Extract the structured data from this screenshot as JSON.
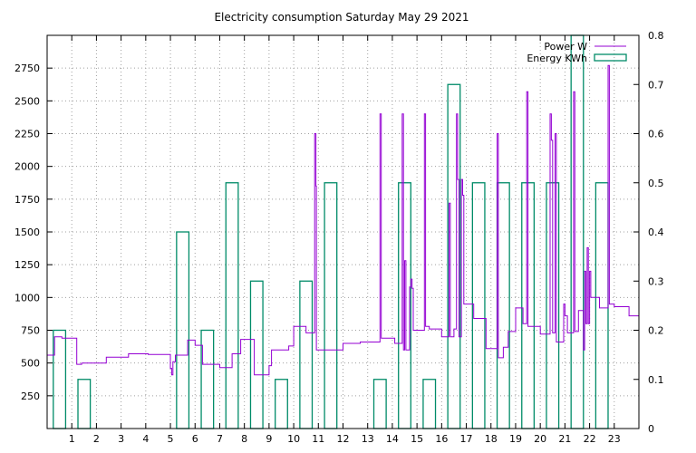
{
  "chart_data": {
    "type": "bar+line",
    "title": "Electricity consumption Saturday May 29 2021",
    "xlabel": "",
    "ylabel": "",
    "y2label": "",
    "xlim": [
      0,
      24
    ],
    "ylim": [
      0,
      3000
    ],
    "y2lim": [
      0,
      0.8
    ],
    "x_ticks": [
      1,
      2,
      3,
      4,
      5,
      6,
      7,
      8,
      9,
      10,
      11,
      12,
      13,
      14,
      15,
      16,
      17,
      18,
      19,
      20,
      21,
      22,
      23
    ],
    "y_ticks": [
      250,
      500,
      750,
      1000,
      1250,
      1500,
      1750,
      2000,
      2250,
      2500,
      2750
    ],
    "y2_ticks": [
      0,
      0.1,
      0.2,
      0.3,
      0.4,
      0.5,
      0.6,
      0.7,
      0.8
    ],
    "grid": true,
    "legend_position": "top-right",
    "series": [
      {
        "name": "Power W",
        "axis": "left",
        "style": "steps",
        "color": "#9400d3",
        "points": [
          [
            0,
            560
          ],
          [
            0.3,
            700
          ],
          [
            0.6,
            690
          ],
          [
            1.2,
            490
          ],
          [
            1.4,
            500
          ],
          [
            2.4,
            545
          ],
          [
            3.3,
            570
          ],
          [
            4.1,
            565
          ],
          [
            5.0,
            460
          ],
          [
            5.05,
            410
          ],
          [
            5.1,
            510
          ],
          [
            5.2,
            560
          ],
          [
            5.7,
            675
          ],
          [
            6.0,
            635
          ],
          [
            6.3,
            490
          ],
          [
            7.0,
            465
          ],
          [
            7.5,
            570
          ],
          [
            7.85,
            680
          ],
          [
            8.4,
            410
          ],
          [
            9.0,
            480
          ],
          [
            9.1,
            600
          ],
          [
            9.8,
            630
          ],
          [
            10.0,
            780
          ],
          [
            10.5,
            730
          ],
          [
            10.85,
            2250
          ],
          [
            10.9,
            1850
          ],
          [
            10.92,
            600
          ],
          [
            12.0,
            650
          ],
          [
            12.7,
            660
          ],
          [
            13.5,
            2400
          ],
          [
            13.55,
            690
          ],
          [
            14.1,
            650
          ],
          [
            14.4,
            2400
          ],
          [
            14.45,
            600
          ],
          [
            14.5,
            1280
          ],
          [
            14.55,
            600
          ],
          [
            14.7,
            1080
          ],
          [
            14.75,
            1140
          ],
          [
            14.8,
            1070
          ],
          [
            14.85,
            750
          ],
          [
            15.3,
            2400
          ],
          [
            15.35,
            780
          ],
          [
            15.5,
            760
          ],
          [
            16.0,
            700
          ],
          [
            16.3,
            1720
          ],
          [
            16.35,
            700
          ],
          [
            16.5,
            760
          ],
          [
            16.6,
            2400
          ],
          [
            16.65,
            1900
          ],
          [
            16.7,
            700
          ],
          [
            16.8,
            1900
          ],
          [
            16.85,
            1780
          ],
          [
            16.9,
            950
          ],
          [
            17.3,
            840
          ],
          [
            17.8,
            610
          ],
          [
            18.25,
            2250
          ],
          [
            18.3,
            540
          ],
          [
            18.5,
            620
          ],
          [
            18.7,
            740
          ],
          [
            19.0,
            920
          ],
          [
            19.3,
            800
          ],
          [
            19.45,
            2570
          ],
          [
            19.5,
            780
          ],
          [
            20.0,
            720
          ],
          [
            20.4,
            2400
          ],
          [
            20.45,
            2200
          ],
          [
            20.5,
            730
          ],
          [
            20.6,
            2250
          ],
          [
            20.65,
            660
          ],
          [
            20.95,
            950
          ],
          [
            21.0,
            860
          ],
          [
            21.1,
            730
          ],
          [
            21.35,
            2570
          ],
          [
            21.4,
            740
          ],
          [
            21.55,
            900
          ],
          [
            21.75,
            600
          ],
          [
            21.8,
            1200
          ],
          [
            21.85,
            800
          ],
          [
            21.9,
            1380
          ],
          [
            21.95,
            800
          ],
          [
            22.0,
            1200
          ],
          [
            22.05,
            1000
          ],
          [
            22.4,
            920
          ],
          [
            22.75,
            2770
          ],
          [
            22.8,
            950
          ],
          [
            23.0,
            930
          ],
          [
            23.6,
            860
          ],
          [
            24.0,
            860
          ]
        ]
      },
      {
        "name": "Energy KWh",
        "axis": "right",
        "style": "boxes",
        "color": "#008b68",
        "x": [
          0,
          1,
          2,
          3,
          4,
          5,
          6,
          7,
          8,
          9,
          10,
          11,
          12,
          13,
          14,
          15,
          16,
          17,
          18,
          19,
          20,
          21,
          22,
          23
        ],
        "values": [
          0.2,
          0.1,
          0,
          0,
          0,
          0.4,
          0.2,
          0.5,
          0.3,
          0.1,
          0.3,
          0.5,
          0,
          0.1,
          0.5,
          0.1,
          0.7,
          0.5,
          0.5,
          0.5,
          0.5,
          0.8,
          0.5,
          0
        ]
      }
    ]
  }
}
